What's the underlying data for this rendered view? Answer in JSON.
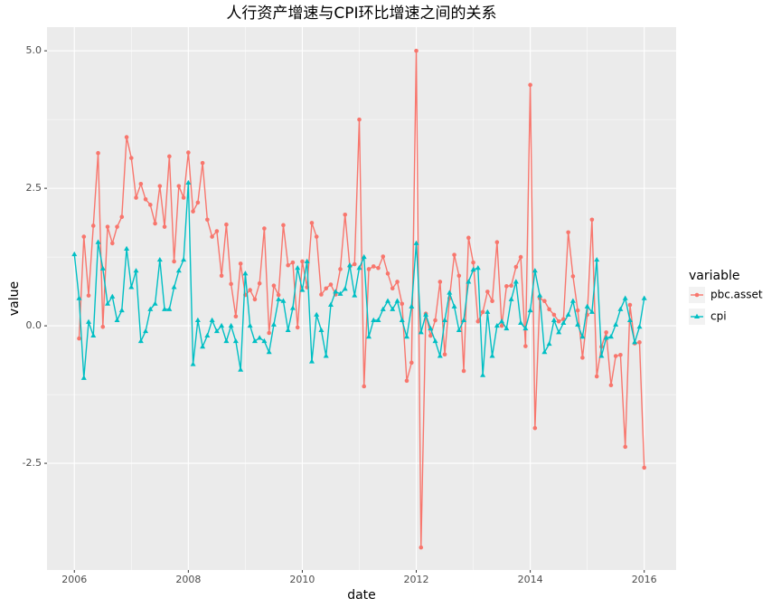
{
  "chart_data": {
    "type": "line",
    "title": "人行资产增速与CPI环比增速之间的关系",
    "xlabel": "date",
    "ylabel": "value",
    "legend_title": "variable",
    "legend_position": "right",
    "grid": true,
    "xlim": [
      2005.52,
      2016.56
    ],
    "xticks": [
      2006,
      2008,
      2010,
      2012,
      2014,
      2016
    ],
    "ylim": [
      -4.44,
      5.43
    ],
    "yticks": [
      -2.5,
      {
        "value": 0,
        "label": "0.0"
      },
      2.5,
      {
        "value": 5,
        "label": "5.0"
      }
    ],
    "x": [
      2006,
      2006.083,
      2006.167,
      2006.25,
      2006.333,
      2006.417,
      2006.5,
      2006.583,
      2006.667,
      2006.75,
      2006.833,
      2006.917,
      2007,
      2007.083,
      2007.167,
      2007.25,
      2007.333,
      2007.417,
      2007.5,
      2007.583,
      2007.667,
      2007.75,
      2007.833,
      2007.917,
      2008,
      2008.083,
      2008.167,
      2008.25,
      2008.333,
      2008.417,
      2008.5,
      2008.583,
      2008.667,
      2008.75,
      2008.833,
      2008.917,
      2009,
      2009.083,
      2009.167,
      2009.25,
      2009.333,
      2009.417,
      2009.5,
      2009.583,
      2009.667,
      2009.75,
      2009.833,
      2009.917,
      2010,
      2010.083,
      2010.167,
      2010.25,
      2010.333,
      2010.417,
      2010.5,
      2010.583,
      2010.667,
      2010.75,
      2010.833,
      2010.917,
      2011,
      2011.083,
      2011.167,
      2011.25,
      2011.333,
      2011.417,
      2011.5,
      2011.583,
      2011.667,
      2011.75,
      2011.833,
      2011.917,
      2012,
      2012.083,
      2012.167,
      2012.25,
      2012.333,
      2012.417,
      2012.5,
      2012.583,
      2012.667,
      2012.75,
      2012.833,
      2012.917,
      2013,
      2013.083,
      2013.167,
      2013.25,
      2013.333,
      2013.417,
      2013.5,
      2013.583,
      2013.667,
      2013.75,
      2013.833,
      2013.917,
      2014,
      2014.083,
      2014.167,
      2014.25,
      2014.333,
      2014.417,
      2014.5,
      2014.583,
      2014.667,
      2014.75,
      2014.833,
      2014.917,
      2015,
      2015.083,
      2015.167,
      2015.25,
      2015.333,
      2015.417,
      2015.5,
      2015.583,
      2015.667,
      2015.75,
      2015.833,
      2015.917,
      2016
    ],
    "series": [
      {
        "name": "pbc.asset",
        "color": "#F8766D",
        "marker": "circle",
        "values": [
          null,
          -0.23,
          1.62,
          0.55,
          1.82,
          3.14,
          -0.02,
          1.8,
          1.5,
          1.8,
          1.98,
          3.43,
          3.05,
          2.33,
          2.58,
          2.3,
          2.2,
          1.86,
          2.54,
          1.8,
          3.08,
          1.17,
          2.54,
          2.33,
          3.15,
          2.08,
          2.24,
          2.96,
          1.93,
          1.62,
          1.72,
          0.91,
          1.84,
          0.76,
          0.17,
          1.13,
          0.56,
          0.65,
          0.48,
          0.77,
          1.77,
          -0.13,
          0.73,
          0.56,
          1.83,
          1.1,
          1.15,
          -0.03,
          1.17,
          0.7,
          1.87,
          1.62,
          0.57,
          0.68,
          0.75,
          0.57,
          1.03,
          2.02,
          1.08,
          1.12,
          3.75,
          -1.1,
          1.03,
          1.08,
          1.05,
          1.26,
          0.95,
          0.68,
          0.8,
          0.4,
          -1.0,
          -0.67,
          5.0,
          -4.03,
          0.22,
          -0.18,
          0.1,
          0.8,
          -0.52,
          0.5,
          1.29,
          0.91,
          -0.82,
          1.6,
          1.15,
          0.08,
          0.25,
          0.62,
          0.45,
          1.52,
          0.0,
          0.72,
          0.73,
          1.07,
          1.25,
          -0.37,
          4.38,
          -1.86,
          0.5,
          0.45,
          0.3,
          0.2,
          0.08,
          0.12,
          1.7,
          0.9,
          0.28,
          -0.58,
          0.2,
          1.93,
          -0.92,
          -0.38,
          -0.12,
          -1.08,
          -0.55,
          -0.53,
          -2.2,
          0.38,
          -0.32,
          -0.3,
          -2.58
        ]
      },
      {
        "name": "cpi",
        "color": "#00BFC4",
        "marker": "triangle",
        "values": [
          1.3,
          0.5,
          -0.95,
          0.07,
          -0.18,
          1.52,
          1.04,
          0.4,
          0.53,
          0.1,
          0.28,
          1.4,
          0.7,
          1.0,
          -0.28,
          -0.1,
          0.3,
          0.4,
          1.2,
          0.3,
          0.3,
          0.7,
          1.0,
          1.2,
          2.6,
          -0.7,
          0.1,
          -0.38,
          -0.18,
          0.1,
          -0.1,
          0.0,
          -0.28,
          0.0,
          -0.28,
          -0.8,
          0.95,
          0.0,
          -0.28,
          -0.22,
          -0.28,
          -0.48,
          0.02,
          0.48,
          0.45,
          -0.08,
          0.32,
          1.05,
          0.65,
          1.17,
          -0.65,
          0.2,
          -0.08,
          -0.55,
          0.38,
          0.62,
          0.58,
          0.67,
          1.1,
          0.55,
          1.05,
          1.25,
          -0.2,
          0.1,
          0.1,
          0.3,
          0.45,
          0.3,
          0.45,
          0.1,
          -0.2,
          0.35,
          1.5,
          -0.12,
          0.2,
          -0.05,
          -0.28,
          -0.55,
          0.1,
          0.6,
          0.35,
          -0.08,
          0.1,
          0.8,
          1.02,
          1.05,
          -0.9,
          0.25,
          -0.55,
          0.0,
          0.08,
          -0.05,
          0.48,
          0.8,
          0.05,
          -0.05,
          0.28,
          1.0,
          0.55,
          -0.48,
          -0.33,
          0.1,
          -0.12,
          0.05,
          0.2,
          0.45,
          0.02,
          -0.2,
          0.35,
          0.25,
          1.2,
          -0.55,
          -0.22,
          -0.2,
          0.02,
          0.3,
          0.5,
          0.1,
          -0.3,
          -0.02,
          0.5
        ]
      }
    ]
  }
}
